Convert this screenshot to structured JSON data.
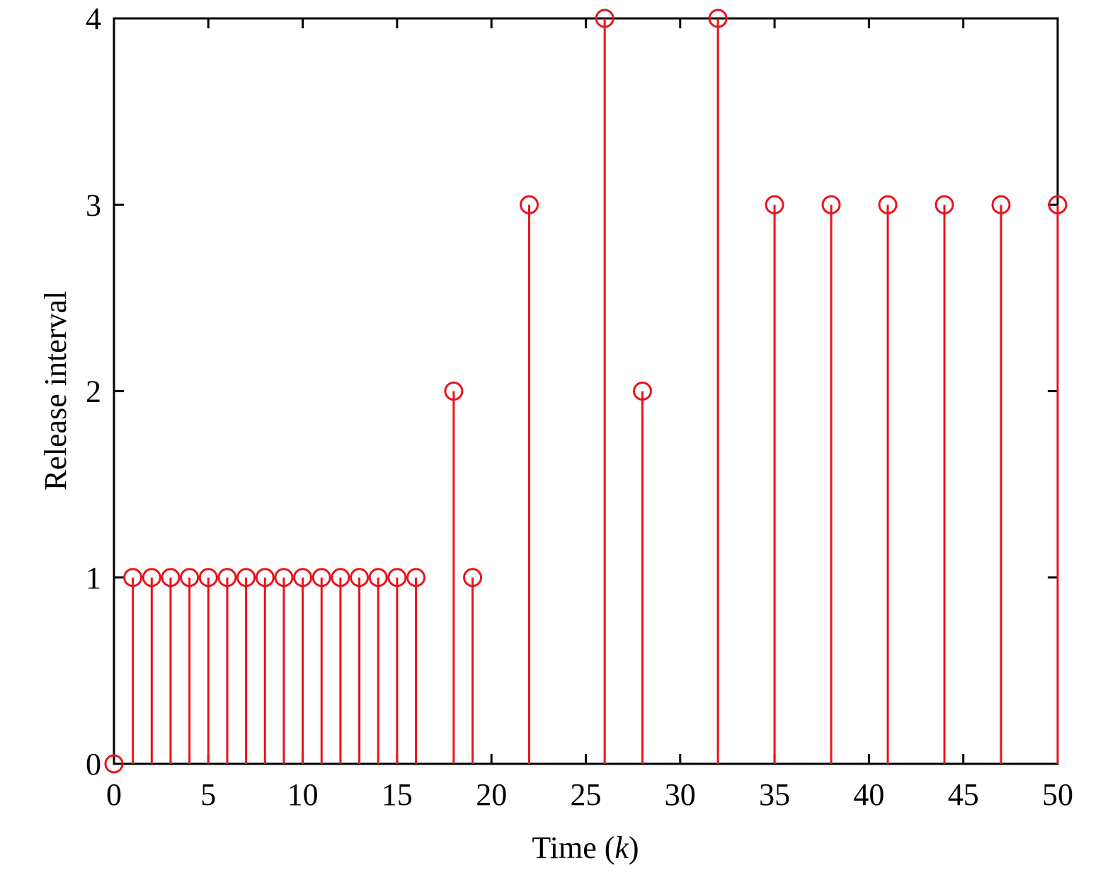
{
  "chart_data": {
    "type": "stem",
    "title": "",
    "xlabel": "Time (k)",
    "xlabel_parts": {
      "prefix": "Time (",
      "var": "k",
      "suffix": ")"
    },
    "ylabel": "Release interval",
    "xlim": [
      0,
      50
    ],
    "ylim": [
      0,
      4
    ],
    "x_ticks": [
      0,
      5,
      10,
      15,
      20,
      25,
      30,
      35,
      40,
      45,
      50
    ],
    "y_ticks": [
      0,
      1,
      2,
      3,
      4
    ],
    "grid": false,
    "legend": null,
    "series": [
      {
        "name": "Release interval",
        "color": "#e8141b",
        "marker": "circle-open",
        "x": [
          0,
          1,
          2,
          3,
          4,
          5,
          6,
          7,
          8,
          9,
          10,
          11,
          12,
          13,
          14,
          15,
          16,
          18,
          19,
          22,
          26,
          28,
          32,
          35,
          38,
          41,
          44,
          47,
          50
        ],
        "values": [
          0,
          1,
          1,
          1,
          1,
          1,
          1,
          1,
          1,
          1,
          1,
          1,
          1,
          1,
          1,
          1,
          1,
          2,
          1,
          3,
          4,
          2,
          4,
          3,
          3,
          3,
          3,
          3,
          3
        ]
      }
    ]
  },
  "style": {
    "axis_color": "#000000",
    "stem_color": "#e8141b"
  }
}
